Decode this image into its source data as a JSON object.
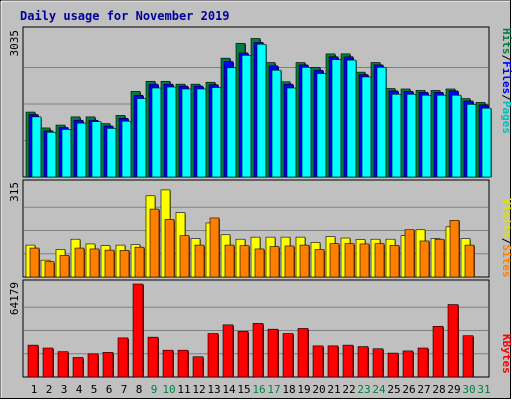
{
  "chart_data": [
    {
      "type": "bar",
      "title": "Daily usage for November 2019",
      "categories": [
        "1",
        "2",
        "3",
        "4",
        "5",
        "6",
        "7",
        "8",
        "9",
        "10",
        "11",
        "12",
        "13",
        "14",
        "15",
        "16",
        "17",
        "18",
        "19",
        "20",
        "21",
        "22",
        "23",
        "24",
        "25",
        "26",
        "27",
        "28",
        "29",
        "30",
        "31"
      ],
      "weekend_days": [
        9,
        10,
        16,
        17,
        23,
        24,
        30,
        31
      ],
      "ylabel_max": "3035",
      "ylim": [
        0,
        3035
      ],
      "series": [
        {
          "name": "Hits",
          "color": "#008040",
          "values": [
            1350,
            1020,
            1080,
            1250,
            1250,
            1110,
            1280,
            1780,
            1990,
            1990,
            1930,
            1930,
            1970,
            2470,
            2780,
            2880,
            2380,
            1980,
            2380,
            2280,
            2560,
            2560,
            2180,
            2380,
            1840,
            1830,
            1800,
            1800,
            1830,
            1630,
            1550
          ]
        },
        {
          "name": "Files",
          "color": "#0000ff",
          "values": [
            1300,
            960,
            1030,
            1180,
            1180,
            1060,
            1220,
            1700,
            1930,
            1930,
            1890,
            1890,
            1920,
            2400,
            2580,
            2800,
            2310,
            1930,
            2330,
            2220,
            2500,
            2500,
            2130,
            2330,
            1790,
            1780,
            1760,
            1760,
            1790,
            1580,
            1500
          ]
        },
        {
          "name": "Pages",
          "color": "#00ffff",
          "values": [
            1250,
            930,
            990,
            1120,
            1150,
            1010,
            1160,
            1630,
            1850,
            1870,
            1830,
            1830,
            1860,
            2270,
            2530,
            2760,
            2220,
            1850,
            2280,
            2150,
            2440,
            2430,
            2080,
            2280,
            1720,
            1720,
            1700,
            1700,
            1700,
            1510,
            1430
          ]
        }
      ],
      "legend": [
        "Pages",
        "/",
        "Files",
        "/",
        "Hits"
      ]
    },
    {
      "type": "bar",
      "categories": [
        "1",
        "2",
        "3",
        "4",
        "5",
        "6",
        "7",
        "8",
        "9",
        "10",
        "11",
        "12",
        "13",
        "14",
        "15",
        "16",
        "17",
        "18",
        "19",
        "20",
        "21",
        "22",
        "23",
        "24",
        "25",
        "26",
        "27",
        "28",
        "29",
        "30",
        "31"
      ],
      "ylabel_max": "315",
      "ylim": [
        0,
        315
      ],
      "series": [
        {
          "name": "Visits",
          "color": "#ffff00",
          "values": [
            108,
            57,
            93,
            128,
            112,
            106,
            108,
            110,
            275,
            295,
            218,
            130,
            183,
            143,
            128,
            135,
            135,
            135,
            135,
            117,
            137,
            132,
            127,
            128,
            128,
            140,
            160,
            130,
            170,
            130,
            0
          ]
        },
        {
          "name": "Sites",
          "color": "#ff8000",
          "values": [
            98,
            52,
            73,
            98,
            95,
            91,
            90,
            101,
            230,
            195,
            140,
            108,
            200,
            108,
            106,
            95,
            103,
            105,
            108,
            93,
            113,
            113,
            112,
            113,
            107,
            160,
            122,
            128,
            192,
            108,
            0
          ]
        }
      ],
      "legend": [
        "Sites",
        "/",
        "Visits"
      ]
    },
    {
      "type": "bar",
      "categories": [
        "1",
        "2",
        "3",
        "4",
        "5",
        "6",
        "7",
        "8",
        "9",
        "10",
        "11",
        "12",
        "13",
        "14",
        "15",
        "16",
        "17",
        "18",
        "19",
        "20",
        "21",
        "22",
        "23",
        "24",
        "25",
        "26",
        "27",
        "28",
        "29",
        "30",
        "31"
      ],
      "ylabel_max": "64179",
      "ylim": [
        0,
        64179
      ],
      "series": [
        {
          "name": "KBytes",
          "color": "#ff0000",
          "values": [
            22000,
            20000,
            17500,
            13500,
            16000,
            17000,
            27000,
            64179,
            27500,
            18500,
            18500,
            14000,
            30000,
            36000,
            31500,
            37000,
            33000,
            30000,
            33500,
            21500,
            21500,
            22000,
            21000,
            19500,
            16500,
            18000,
            20000,
            35000,
            50000,
            28500,
            0
          ]
        }
      ],
      "legend": [
        "KBytes"
      ]
    }
  ]
}
